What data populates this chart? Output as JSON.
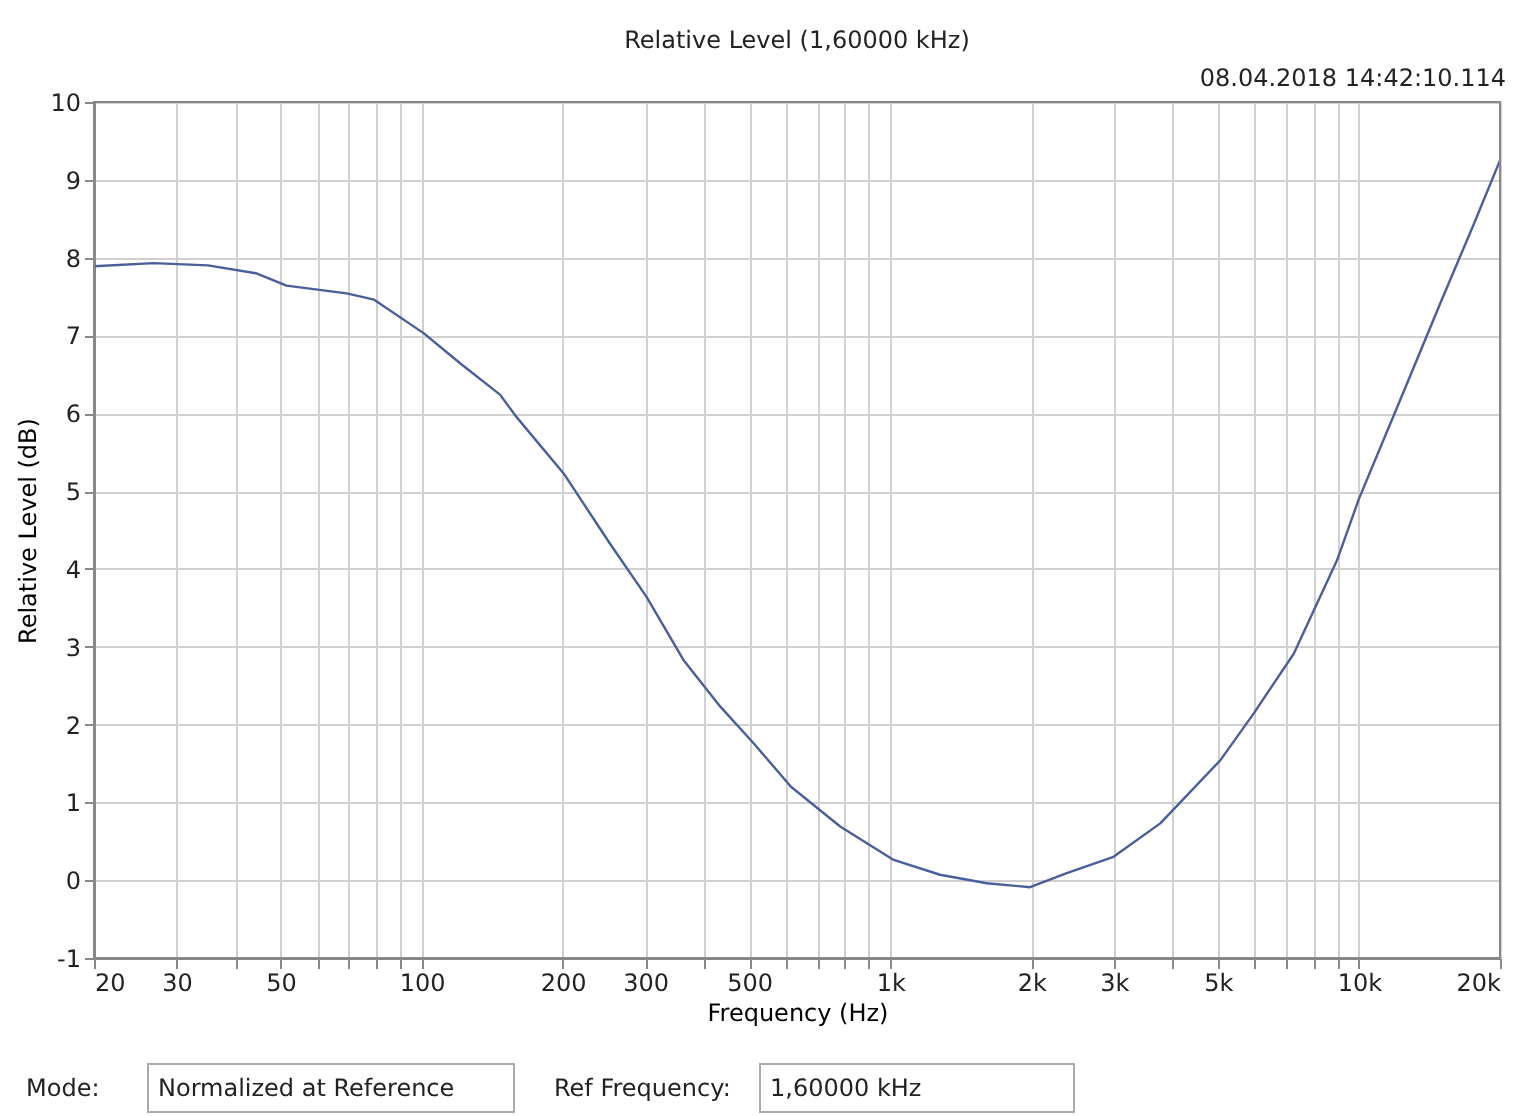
{
  "chart_data": {
    "type": "line",
    "title": "Relative Level (1,60000 kHz)",
    "xlabel": "Frequency (Hz)",
    "ylabel": "Relative Level (dB)",
    "annotations": [
      "08.04.2018 14:42:10.114",
      "Mode:",
      "Normalized at Reference",
      "Ref Frequency:",
      "1,60000 kHz"
    ],
    "log": "x",
    "grid": true,
    "marker": "none",
    "line_style": "solid",
    "xlim": [
      20,
      20000
    ],
    "ylim": [
      -1,
      10
    ],
    "xticks": [
      20,
      30,
      {
        "value": 40,
        "label": null
      },
      50,
      {
        "value": 60,
        "label": null
      },
      {
        "value": 70,
        "label": null
      },
      {
        "value": 80,
        "label": null
      },
      {
        "value": 90,
        "label": null
      },
      100,
      200,
      300,
      {
        "value": 400,
        "label": null
      },
      500,
      {
        "value": 600,
        "label": null
      },
      {
        "value": 700,
        "label": null
      },
      {
        "value": 800,
        "label": null
      },
      {
        "value": 900,
        "label": null
      },
      {
        "value": 1000,
        "label": "1k"
      },
      {
        "value": 2000,
        "label": "2k"
      },
      {
        "value": 3000,
        "label": "3k"
      },
      {
        "value": 4000,
        "label": null
      },
      {
        "value": 5000,
        "label": "5k"
      },
      {
        "value": 6000,
        "label": null
      },
      {
        "value": 7000,
        "label": null
      },
      {
        "value": 8000,
        "label": null
      },
      {
        "value": 9000,
        "label": null
      },
      {
        "value": 10000,
        "label": "10k"
      },
      {
        "value": 20000,
        "label": "20k"
      }
    ],
    "yticks": [
      -1,
      0,
      1,
      2,
      3,
      4,
      5,
      6,
      7,
      8,
      9,
      10
    ],
    "series": [
      {
        "color": "#4a5f9a",
        "x": [
          20,
          26.8,
          35,
          44.3,
          51.5,
          69.2,
          79.2,
          101,
          121,
          147,
          159,
          200.8,
          252,
          302,
          362,
          434,
          511,
          614,
          782,
          1017,
          1277,
          1607,
          1988,
          2380,
          2995,
          3768,
          5060,
          5960,
          7260,
          8980,
          10000,
          12500,
          15000,
          17500,
          20000
        ],
        "values": [
          7.89,
          7.93,
          7.9,
          7.8,
          7.64,
          7.54,
          7.46,
          7.03,
          6.64,
          6.24,
          5.96,
          5.23,
          4.33,
          3.64,
          2.83,
          2.23,
          1.76,
          1.2,
          0.69,
          0.26,
          0.07,
          -0.04,
          -0.09,
          0.09,
          0.3,
          0.73,
          1.54,
          2.14,
          2.91,
          4.11,
          4.9,
          6.3,
          7.45,
          8.4,
          9.25
        ]
      }
    ]
  }
}
